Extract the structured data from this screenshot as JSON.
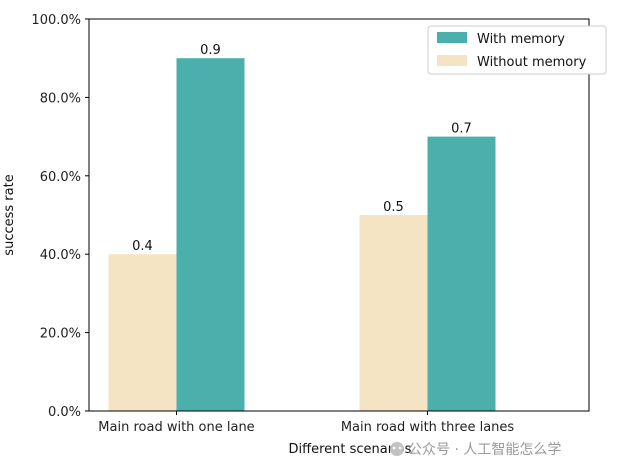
{
  "chart_data": {
    "type": "bar",
    "title": "",
    "xlabel": "Different scenarios",
    "ylabel": "success rate",
    "ylim": [
      0,
      1.0
    ],
    "yticks": [
      0,
      0.2,
      0.4,
      0.6,
      0.8,
      1.0
    ],
    "ytick_labels": [
      "0.0%",
      "20.0%",
      "40.0%",
      "60.0%",
      "80.0%",
      "100.0%"
    ],
    "categories": [
      "Main road with one lane",
      "Main road with three lanes"
    ],
    "series": [
      {
        "name": "Without memory",
        "values": [
          0.4,
          0.5
        ],
        "labels": [
          "0.4",
          "0.5"
        ],
        "color": "#f5e4c3"
      },
      {
        "name": "With memory",
        "values": [
          0.9,
          0.7
        ],
        "labels": [
          "0.9",
          "0.7"
        ],
        "color": "#4bafab"
      }
    ],
    "legend_order": [
      "With memory",
      "Without memory"
    ],
    "legend_position": "top-right"
  },
  "watermark": {
    "text": "公众号 · 人工智能怎么学"
  }
}
